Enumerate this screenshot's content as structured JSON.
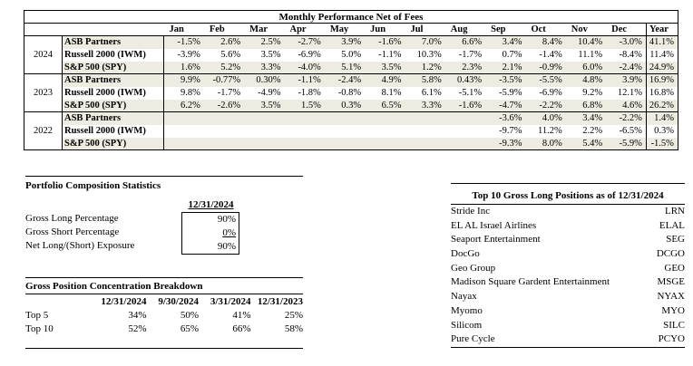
{
  "colors": {
    "stripe": "#eeece1",
    "border": "#000000",
    "background": "#ffffff"
  },
  "performance_table": {
    "title": "Monthly Performance Net of Fees",
    "columns": [
      "Jan",
      "Feb",
      "Mar",
      "Apr",
      "May",
      "Jun",
      "Jul",
      "Aug",
      "Sep",
      "Oct",
      "Nov",
      "Dec",
      "Year"
    ],
    "groups": [
      {
        "year": "2024",
        "rows": [
          {
            "name": "ASB Partners",
            "values": [
              "-1.5%",
              "2.6%",
              "2.5%",
              "-2.7%",
              "3.9%",
              "-1.6%",
              "7.0%",
              "6.6%",
              "3.4%",
              "8.4%",
              "10.4%",
              "-3.0%",
              "41.1%"
            ]
          },
          {
            "name": "Russell 2000 (IWM)",
            "values": [
              "-3.9%",
              "5.6%",
              "3.5%",
              "-6.9%",
              "5.0%",
              "-1.1%",
              "10.3%",
              "-1.7%",
              "0.7%",
              "-1.4%",
              "11.1%",
              "-8.4%",
              "11.4%"
            ]
          },
          {
            "name": "S&P 500 (SPY)",
            "values": [
              "1.6%",
              "5.2%",
              "3.3%",
              "-4.0%",
              "5.1%",
              "3.5%",
              "1.2%",
              "2.3%",
              "2.1%",
              "-0.9%",
              "6.0%",
              "-2.4%",
              "24.9%"
            ]
          }
        ]
      },
      {
        "year": "2023",
        "rows": [
          {
            "name": "ASB Partners",
            "values": [
              "9.9%",
              "-0.77%",
              "0.30%",
              "-1.1%",
              "-2.4%",
              "4.9%",
              "5.8%",
              "0.43%",
              "-3.5%",
              "-5.5%",
              "4.8%",
              "3.9%",
              "16.9%"
            ]
          },
          {
            "name": "Russell 2000 (IWM)",
            "values": [
              "9.8%",
              "-1.7%",
              "-4.9%",
              "-1.8%",
              "-0.8%",
              "8.1%",
              "6.1%",
              "-5.1%",
              "-5.9%",
              "-6.9%",
              "9.2%",
              "12.1%",
              "16.8%"
            ]
          },
          {
            "name": "S&P 500 (SPY)",
            "values": [
              "6.2%",
              "-2.6%",
              "3.5%",
              "1.5%",
              "0.3%",
              "6.5%",
              "3.3%",
              "-1.6%",
              "-4.7%",
              "-2.2%",
              "6.8%",
              "4.6%",
              "26.2%"
            ]
          }
        ]
      },
      {
        "year": "2022",
        "rows": [
          {
            "name": "ASB Partners",
            "values": [
              "",
              "",
              "",
              "",
              "",
              "",
              "",
              "",
              "-3.6%",
              "4.0%",
              "3.4%",
              "-2.2%",
              "1.4%"
            ]
          },
          {
            "name": "Russell 2000 (IWM)",
            "values": [
              "",
              "",
              "",
              "",
              "",
              "",
              "",
              "",
              "-9.7%",
              "11.2%",
              "2.2%",
              "-6.5%",
              "0.3%"
            ]
          },
          {
            "name": "S&P 500 (SPY)",
            "values": [
              "",
              "",
              "",
              "",
              "",
              "",
              "",
              "",
              "-9.3%",
              "8.0%",
              "5.4%",
              "-5.9%",
              "-1.5%"
            ]
          }
        ]
      }
    ]
  },
  "portfolio_composition": {
    "title": "Portfolio Composition Statistics",
    "date_header": "12/31/2024",
    "rows": [
      {
        "label": "Gross Long Percentage",
        "value": "90%",
        "underline": false
      },
      {
        "label": "Gross Short Percentage",
        "value": "0%",
        "underline": true
      },
      {
        "label": "Net Long/(Short) Exposure",
        "value": "90%",
        "underline": false
      }
    ]
  },
  "concentration": {
    "title": "Gross Position Concentration Breakdown",
    "columns": [
      "12/31/2024",
      "9/30/2024",
      "3/31/2024",
      "12/31/2023"
    ],
    "rows": [
      {
        "label": "Top 5",
        "values": [
          "34%",
          "50%",
          "41%",
          "25%"
        ]
      },
      {
        "label": "Top 10",
        "values": [
          "52%",
          "65%",
          "66%",
          "58%"
        ]
      }
    ]
  },
  "top_positions": {
    "title": "Top 10 Gross Long Positions as of 12/31/2024",
    "rows": [
      {
        "name": "Stride Inc",
        "ticker": "LRN"
      },
      {
        "name": "EL AL Israel Airlines",
        "ticker": "ELAL"
      },
      {
        "name": "Seaport Entertainment",
        "ticker": "SEG"
      },
      {
        "name": "DocGo",
        "ticker": "DCGO"
      },
      {
        "name": "Geo Group",
        "ticker": "GEO"
      },
      {
        "name": "Madison Square Gardent Entertainment",
        "ticker": "MSGE"
      },
      {
        "name": "Nayax",
        "ticker": "NYAX"
      },
      {
        "name": "Myomo",
        "ticker": "MYO"
      },
      {
        "name": "Silicom",
        "ticker": "SILC"
      },
      {
        "name": "Pure Cycle",
        "ticker": "PCYO"
      }
    ]
  }
}
